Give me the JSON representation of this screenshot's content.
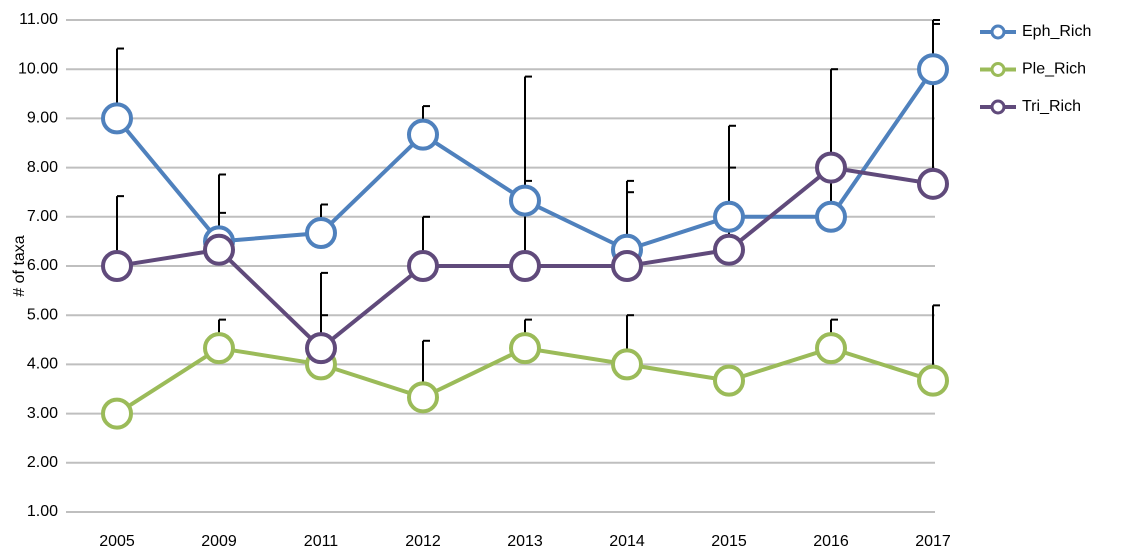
{
  "chart_data": {
    "type": "line",
    "y_label": "# of taxa",
    "categories": [
      "2005",
      "2009",
      "2011",
      "2012",
      "2013",
      "2014",
      "2015",
      "2016",
      "2017"
    ],
    "ylim": [
      1,
      11
    ],
    "yticks": [
      {
        "value": 1,
        "label": "1.00"
      },
      {
        "value": 2,
        "label": "2.00"
      },
      {
        "value": 3,
        "label": "3.00"
      },
      {
        "value": 4,
        "label": "4.00"
      },
      {
        "value": 5,
        "label": "5.00"
      },
      {
        "value": 6,
        "label": "6.00"
      },
      {
        "value": 7,
        "label": "7.00"
      },
      {
        "value": 8,
        "label": "8.00"
      },
      {
        "value": 9,
        "label": "9.00"
      },
      {
        "value": 10,
        "label": "10.00"
      },
      {
        "value": 11,
        "label": "11.00"
      }
    ],
    "grid": true,
    "legend": "right",
    "series": [
      {
        "name": "Eph_Rich",
        "color": "#4f81bd",
        "values": [
          9.0,
          6.5,
          6.67,
          8.67,
          7.33,
          6.33,
          7.0,
          7.0,
          10.0
        ],
        "errors": [
          1.42,
          0.58,
          0.58,
          0.58,
          2.52,
          1.4,
          1.85,
          3.0,
          1.0
        ]
      },
      {
        "name": "Ple_Rich",
        "color": "#9bbb59",
        "values": [
          3.0,
          4.33,
          4.0,
          3.33,
          4.33,
          4.0,
          3.67,
          4.33,
          3.67
        ],
        "errors": [
          null,
          0.58,
          1.0,
          1.15,
          0.58,
          1.0,
          null,
          0.58,
          1.53
        ]
      },
      {
        "name": "Tri_Rich",
        "color": "#604a7b",
        "values": [
          6.0,
          6.33,
          4.33,
          6.0,
          6.0,
          6.0,
          6.33,
          8.0,
          7.67
        ],
        "errors": [
          1.42,
          1.53,
          1.53,
          1.0,
          1.73,
          1.5,
          1.67,
          null,
          3.25
        ]
      }
    ]
  }
}
